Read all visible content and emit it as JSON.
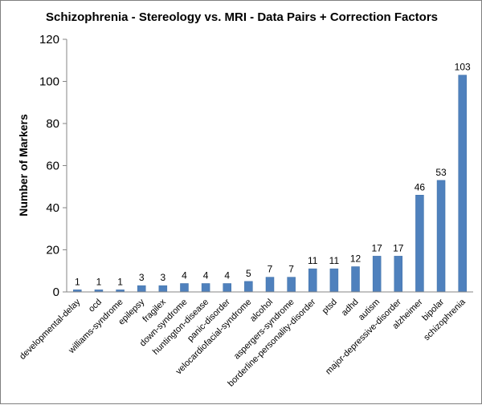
{
  "chart_data": {
    "type": "bar",
    "title": "Schizophrenia - Stereology vs. MRI - Data Pairs + Correction Factors",
    "xlabel": "",
    "ylabel": "Number of Markers",
    "ylim": [
      0,
      120
    ],
    "yticks": [
      0,
      20,
      40,
      60,
      80,
      100,
      120
    ],
    "grid": false,
    "legend": "none",
    "bar_color": "#4f81bd",
    "categories": [
      "developmental-delay",
      "ocd",
      "williams-syndrome",
      "epilepsy",
      "fragilex",
      "down-syndrome",
      "huntington-disease",
      "panic-disorder",
      "velocardiofacial-syndrome",
      "alcohol",
      "aspergers-syndrome",
      "borderline-personality-disorder",
      "ptsd",
      "adhd",
      "autism",
      "major-depressive-disorder",
      "alzheimer",
      "bipolar",
      "schizophrenia"
    ],
    "values": [
      1,
      1,
      1,
      3,
      3,
      4,
      4,
      4,
      5,
      7,
      7,
      11,
      11,
      12,
      17,
      17,
      46,
      53,
      103
    ]
  }
}
